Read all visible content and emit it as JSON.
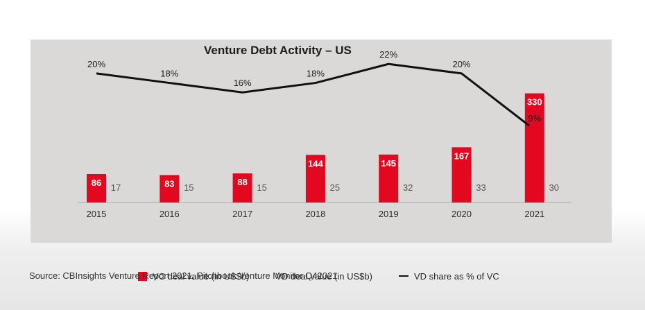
{
  "source_text": "Source: CBInsights Venture Report 2021, Pitchbook Venture Monitor Q42021",
  "legend": {
    "vc": "VC deal value (in US$b)",
    "vd": "VD deal value (in US$b)",
    "share": "VD share as % of VC"
  },
  "colors": {
    "vc_bar": "#e3081f",
    "line": "#111111",
    "panel": "#dad9d7"
  },
  "chart_data": {
    "type": "bar+line",
    "title": "Venture Debt Activity – US",
    "categories": [
      "2015",
      "2016",
      "2017",
      "2018",
      "2019",
      "2020",
      "2021"
    ],
    "series": [
      {
        "name": "VC deal value (in US$b)",
        "type": "bar",
        "values": [
          86,
          83,
          88,
          144,
          145,
          167,
          330
        ]
      },
      {
        "name": "VD deal value (in US$b)",
        "type": "label",
        "values": [
          17,
          15,
          15,
          25,
          32,
          33,
          30
        ]
      },
      {
        "name": "VD share as % of VC",
        "type": "line",
        "values": [
          20,
          18,
          16,
          18,
          22,
          20,
          9
        ],
        "labels": [
          "20%",
          "18%",
          "16%",
          "18%",
          "22%",
          "20%",
          "9%"
        ]
      }
    ],
    "xlabel": "",
    "ylabel": "",
    "grid": false,
    "legend": "bottom"
  }
}
